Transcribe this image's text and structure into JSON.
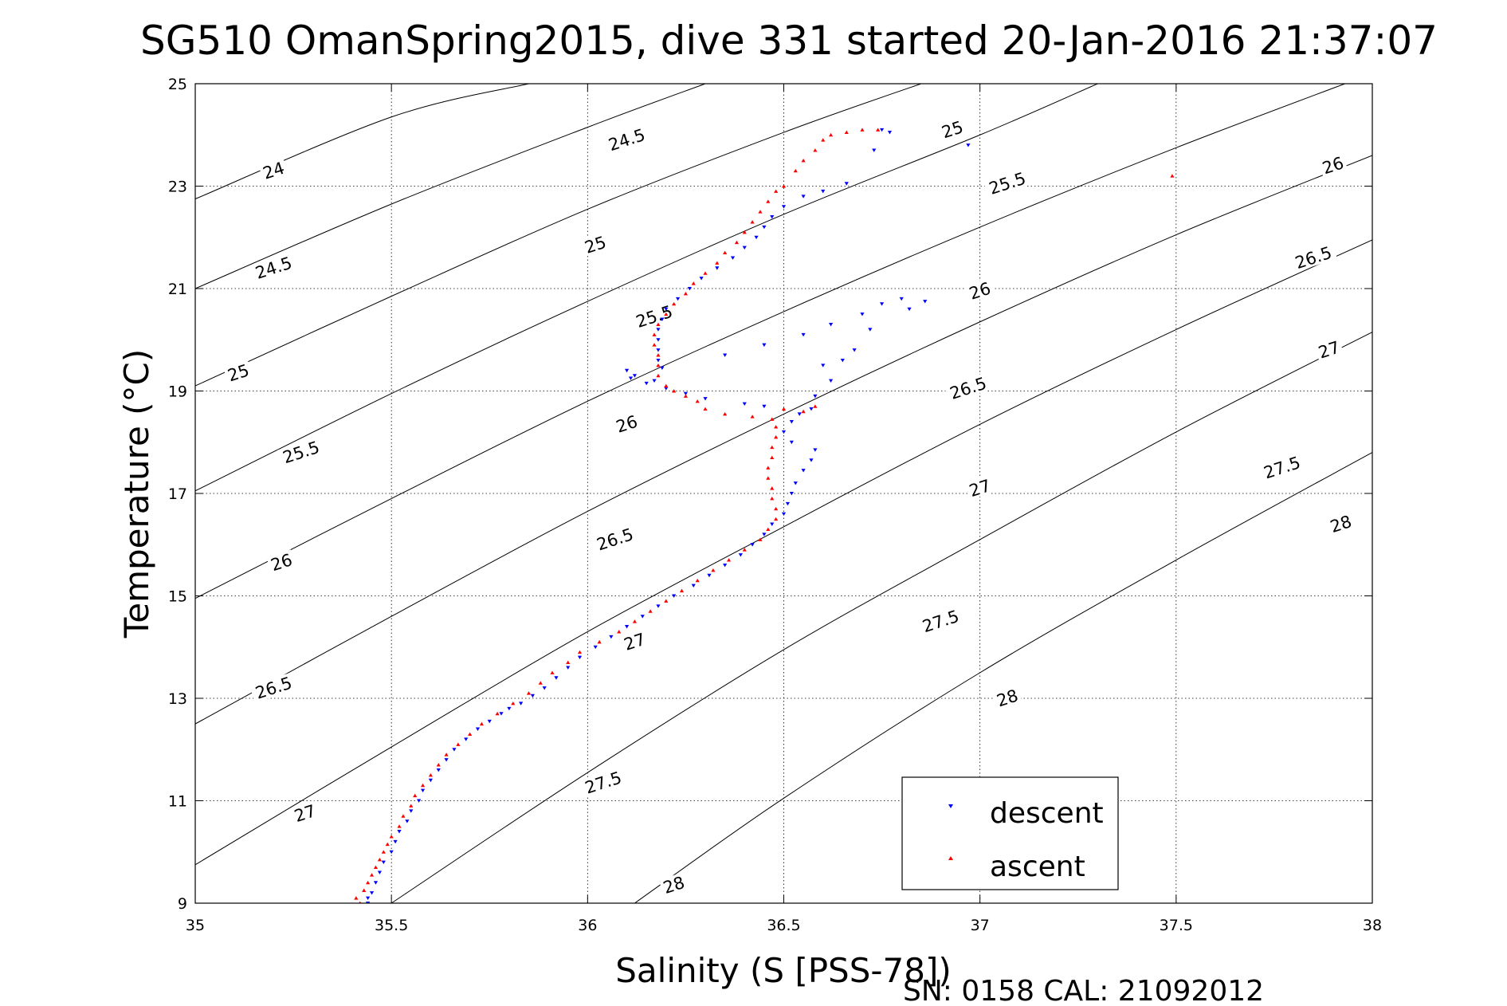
{
  "chart_data": {
    "type": "scatter",
    "title": "SG510 OmanSpring2015, dive 331 started 20-Jan-2016 21:37:07",
    "xlabel": "Salinity (S [PSS-78])",
    "ylabel": "Temperature (°C)",
    "xlim": [
      35,
      38
    ],
    "ylim": [
      9,
      25
    ],
    "x_ticks": [
      35,
      35.5,
      36,
      36.5,
      37,
      37.5,
      38
    ],
    "x_tick_labels": [
      "35",
      "35.5",
      "36",
      "36.5",
      "37",
      "37.5",
      "38"
    ],
    "y_ticks": [
      9,
      11,
      13,
      15,
      17,
      19,
      21,
      23,
      25
    ],
    "y_tick_labels": [
      "9",
      "11",
      "13",
      "15",
      "17",
      "19",
      "21",
      "23",
      "25"
    ],
    "grid": true,
    "legend_placement": "bottom-right",
    "footnote": "SN: 0158  CAL: 21092012",
    "colors": {
      "descent": "#0000ff",
      "ascent": "#ff0000",
      "contour": "#000000"
    },
    "contours": [
      {
        "level": "24",
        "points": [
          [
            35.0,
            22.75
          ],
          [
            35.5,
            24.35
          ],
          [
            35.85,
            25.0
          ]
        ]
      },
      {
        "level": "24.5",
        "points": [
          [
            35.0,
            21.0
          ],
          [
            35.5,
            22.65
          ],
          [
            36.0,
            24.15
          ],
          [
            36.3,
            25.0
          ]
        ]
      },
      {
        "level": "25",
        "points": [
          [
            35.0,
            19.1
          ],
          [
            35.5,
            20.85
          ],
          [
            36.0,
            22.55
          ],
          [
            36.5,
            24.05
          ],
          [
            36.85,
            25.0
          ]
        ]
      },
      {
        "level": "25.5",
        "points": [
          [
            35.0,
            17.05
          ],
          [
            35.5,
            18.95
          ],
          [
            36.0,
            20.75
          ],
          [
            36.5,
            22.45
          ],
          [
            37.0,
            24.0
          ],
          [
            37.3,
            25.0
          ]
        ]
      },
      {
        "level": "26",
        "points": [
          [
            35.0,
            14.95
          ],
          [
            35.5,
            16.9
          ],
          [
            36.0,
            18.8
          ],
          [
            36.5,
            20.55
          ],
          [
            37.0,
            22.2
          ],
          [
            37.5,
            23.75
          ],
          [
            38.0,
            25.2
          ]
        ]
      },
      {
        "level": "26.5",
        "points": [
          [
            35.0,
            12.5
          ],
          [
            35.5,
            14.6
          ],
          [
            36.0,
            16.65
          ],
          [
            36.5,
            18.55
          ],
          [
            37.0,
            20.35
          ],
          [
            37.5,
            22.05
          ],
          [
            38.0,
            23.6
          ]
        ]
      },
      {
        "level": "27",
        "points": [
          [
            35.0,
            9.75
          ],
          [
            35.5,
            12.05
          ],
          [
            36.0,
            14.3
          ],
          [
            36.5,
            16.35
          ],
          [
            37.0,
            18.35
          ],
          [
            37.5,
            20.2
          ],
          [
            38.0,
            21.95
          ]
        ]
      },
      {
        "level": "27.5",
        "points": [
          [
            35.5,
            9.0
          ],
          [
            36.0,
            11.55
          ],
          [
            36.5,
            13.95
          ],
          [
            37.0,
            16.1
          ],
          [
            37.5,
            18.2
          ],
          [
            38.0,
            20.15
          ]
        ]
      },
      {
        "level": "28",
        "points": [
          [
            36.12,
            9.0
          ],
          [
            36.5,
            11.05
          ],
          [
            37.0,
            13.5
          ],
          [
            37.5,
            15.7
          ],
          [
            38.0,
            17.8
          ]
        ]
      }
    ],
    "contour_labels": [
      {
        "text": "24",
        "x": 35.2,
        "y": 23.3
      },
      {
        "text": "24.5",
        "x": 36.1,
        "y": 23.9
      },
      {
        "text": "24.5",
        "x": 35.2,
        "y": 21.4
      },
      {
        "text": "25",
        "x": 36.02,
        "y": 21.85
      },
      {
        "text": "25",
        "x": 36.93,
        "y": 24.1
      },
      {
        "text": "25",
        "x": 35.11,
        "y": 19.35
      },
      {
        "text": "25.5",
        "x": 36.17,
        "y": 20.45
      },
      {
        "text": "25.5",
        "x": 37.07,
        "y": 23.05
      },
      {
        "text": "25.5",
        "x": 35.27,
        "y": 17.8
      },
      {
        "text": "26",
        "x": 36.1,
        "y": 18.35
      },
      {
        "text": "26",
        "x": 37.0,
        "y": 20.95
      },
      {
        "text": "26",
        "x": 37.9,
        "y": 23.4
      },
      {
        "text": "26",
        "x": 35.22,
        "y": 15.65
      },
      {
        "text": "26.5",
        "x": 36.07,
        "y": 16.1
      },
      {
        "text": "26.5",
        "x": 36.97,
        "y": 19.05
      },
      {
        "text": "26.5",
        "x": 37.85,
        "y": 21.6
      },
      {
        "text": "26.5",
        "x": 35.2,
        "y": 13.2
      },
      {
        "text": "27",
        "x": 36.12,
        "y": 14.1
      },
      {
        "text": "27",
        "x": 37.0,
        "y": 17.1
      },
      {
        "text": "27",
        "x": 37.89,
        "y": 19.8
      },
      {
        "text": "27",
        "x": 35.28,
        "y": 10.75
      },
      {
        "text": "27.5",
        "x": 36.04,
        "y": 11.35
      },
      {
        "text": "27.5",
        "x": 36.9,
        "y": 14.5
      },
      {
        "text": "27.5",
        "x": 37.77,
        "y": 17.5
      },
      {
        "text": "28",
        "x": 36.22,
        "y": 9.35
      },
      {
        "text": "28",
        "x": 37.07,
        "y": 13.0
      },
      {
        "text": "28",
        "x": 37.92,
        "y": 16.4
      }
    ],
    "series": [
      {
        "name": "descent",
        "marker": "triangle-down",
        "points": [
          [
            35.44,
            9.0
          ],
          [
            35.44,
            9.1
          ],
          [
            35.45,
            9.2
          ],
          [
            35.46,
            9.4
          ],
          [
            35.47,
            9.6
          ],
          [
            35.48,
            9.8
          ],
          [
            35.5,
            10.0
          ],
          [
            35.51,
            10.2
          ],
          [
            35.52,
            10.4
          ],
          [
            35.54,
            10.6
          ],
          [
            35.55,
            10.8
          ],
          [
            35.57,
            11.0
          ],
          [
            35.58,
            11.2
          ],
          [
            35.6,
            11.4
          ],
          [
            35.62,
            11.6
          ],
          [
            35.64,
            11.8
          ],
          [
            35.66,
            12.0
          ],
          [
            35.69,
            12.2
          ],
          [
            35.72,
            12.4
          ],
          [
            35.75,
            12.55
          ],
          [
            35.78,
            12.7
          ],
          [
            35.8,
            12.8
          ],
          [
            35.83,
            12.9
          ],
          [
            35.86,
            13.05
          ],
          [
            35.89,
            13.2
          ],
          [
            35.92,
            13.4
          ],
          [
            35.95,
            13.6
          ],
          [
            35.98,
            13.8
          ],
          [
            36.02,
            14.0
          ],
          [
            36.06,
            14.2
          ],
          [
            36.1,
            14.4
          ],
          [
            36.14,
            14.6
          ],
          [
            36.18,
            14.8
          ],
          [
            36.22,
            15.0
          ],
          [
            36.27,
            15.2
          ],
          [
            36.31,
            15.4
          ],
          [
            36.35,
            15.6
          ],
          [
            36.39,
            15.8
          ],
          [
            36.42,
            16.0
          ],
          [
            36.45,
            16.2
          ],
          [
            36.47,
            16.4
          ],
          [
            36.5,
            16.6
          ],
          [
            36.51,
            16.8
          ],
          [
            36.52,
            17.0
          ],
          [
            36.53,
            17.2
          ],
          [
            36.55,
            17.45
          ],
          [
            36.57,
            17.65
          ],
          [
            36.58,
            17.85
          ],
          [
            36.52,
            18.0
          ],
          [
            36.5,
            18.2
          ],
          [
            36.52,
            18.4
          ],
          [
            36.54,
            18.55
          ],
          [
            36.57,
            18.65
          ],
          [
            36.45,
            18.7
          ],
          [
            36.4,
            18.75
          ],
          [
            36.3,
            18.85
          ],
          [
            36.25,
            18.95
          ],
          [
            36.2,
            19.05
          ],
          [
            36.15,
            19.15
          ],
          [
            36.12,
            19.3
          ],
          [
            36.1,
            19.4
          ],
          [
            36.11,
            19.25
          ],
          [
            36.17,
            19.2
          ],
          [
            36.19,
            19.45
          ],
          [
            36.18,
            19.6
          ],
          [
            36.18,
            19.8
          ],
          [
            36.18,
            20.0
          ],
          [
            36.18,
            20.2
          ],
          [
            36.19,
            20.4
          ],
          [
            36.2,
            20.6
          ],
          [
            36.23,
            20.8
          ],
          [
            36.26,
            21.0
          ],
          [
            36.29,
            21.2
          ],
          [
            36.33,
            21.4
          ],
          [
            36.37,
            21.6
          ],
          [
            36.4,
            21.8
          ],
          [
            36.43,
            22.0
          ],
          [
            36.45,
            22.2
          ],
          [
            36.47,
            22.4
          ],
          [
            36.5,
            22.6
          ],
          [
            36.55,
            22.8
          ],
          [
            36.6,
            22.9
          ],
          [
            36.66,
            23.05
          ],
          [
            36.73,
            23.7
          ],
          [
            36.77,
            24.05
          ],
          [
            36.75,
            24.1
          ],
          [
            36.97,
            23.8
          ],
          [
            36.35,
            19.7
          ],
          [
            36.45,
            19.9
          ],
          [
            36.55,
            20.1
          ],
          [
            36.62,
            20.3
          ],
          [
            36.7,
            20.5
          ],
          [
            36.75,
            20.7
          ],
          [
            36.8,
            20.8
          ],
          [
            36.86,
            20.75
          ],
          [
            36.82,
            20.6
          ],
          [
            36.72,
            20.2
          ],
          [
            36.68,
            19.8
          ],
          [
            36.65,
            19.6
          ],
          [
            36.6,
            19.5
          ],
          [
            36.62,
            19.2
          ],
          [
            36.58,
            18.9
          ]
        ]
      },
      {
        "name": "ascent",
        "marker": "triangle-up",
        "points": [
          [
            35.41,
            9.1
          ],
          [
            35.42,
            9.0
          ],
          [
            35.43,
            9.25
          ],
          [
            35.44,
            9.4
          ],
          [
            35.45,
            9.55
          ],
          [
            35.46,
            9.7
          ],
          [
            35.47,
            9.85
          ],
          [
            35.48,
            10.0
          ],
          [
            35.49,
            10.15
          ],
          [
            35.5,
            10.3
          ],
          [
            35.52,
            10.5
          ],
          [
            35.53,
            10.7
          ],
          [
            35.55,
            10.9
          ],
          [
            35.56,
            11.1
          ],
          [
            35.58,
            11.3
          ],
          [
            35.6,
            11.5
          ],
          [
            35.62,
            11.7
          ],
          [
            35.64,
            11.9
          ],
          [
            35.67,
            12.1
          ],
          [
            35.7,
            12.3
          ],
          [
            35.73,
            12.5
          ],
          [
            35.77,
            12.7
          ],
          [
            35.81,
            12.9
          ],
          [
            35.85,
            13.1
          ],
          [
            35.88,
            13.3
          ],
          [
            35.91,
            13.5
          ],
          [
            35.95,
            13.7
          ],
          [
            35.98,
            13.9
          ],
          [
            36.03,
            14.1
          ],
          [
            36.08,
            14.3
          ],
          [
            36.12,
            14.5
          ],
          [
            36.16,
            14.7
          ],
          [
            36.2,
            14.9
          ],
          [
            36.24,
            15.1
          ],
          [
            36.28,
            15.3
          ],
          [
            36.32,
            15.5
          ],
          [
            36.36,
            15.7
          ],
          [
            36.4,
            15.9
          ],
          [
            36.44,
            16.1
          ],
          [
            36.46,
            16.3
          ],
          [
            36.48,
            16.5
          ],
          [
            36.48,
            16.7
          ],
          [
            36.47,
            16.9
          ],
          [
            36.47,
            17.1
          ],
          [
            36.46,
            17.3
          ],
          [
            36.46,
            17.5
          ],
          [
            36.47,
            17.7
          ],
          [
            36.47,
            17.9
          ],
          [
            36.48,
            18.1
          ],
          [
            36.48,
            18.3
          ],
          [
            36.47,
            18.45
          ],
          [
            36.42,
            18.5
          ],
          [
            36.35,
            18.55
          ],
          [
            36.3,
            18.65
          ],
          [
            36.28,
            18.8
          ],
          [
            36.25,
            18.9
          ],
          [
            36.22,
            19.0
          ],
          [
            36.2,
            19.1
          ],
          [
            36.18,
            19.3
          ],
          [
            36.18,
            19.5
          ],
          [
            36.18,
            19.7
          ],
          [
            36.17,
            19.9
          ],
          [
            36.17,
            20.1
          ],
          [
            36.18,
            20.3
          ],
          [
            36.2,
            20.5
          ],
          [
            36.22,
            20.7
          ],
          [
            36.25,
            20.9
          ],
          [
            36.27,
            21.1
          ],
          [
            36.3,
            21.3
          ],
          [
            36.33,
            21.5
          ],
          [
            36.35,
            21.7
          ],
          [
            36.38,
            21.9
          ],
          [
            36.4,
            22.1
          ],
          [
            36.42,
            22.3
          ],
          [
            36.44,
            22.5
          ],
          [
            36.46,
            22.7
          ],
          [
            36.48,
            22.9
          ],
          [
            36.5,
            23.0
          ],
          [
            36.53,
            23.3
          ],
          [
            36.55,
            23.5
          ],
          [
            36.58,
            23.7
          ],
          [
            36.6,
            23.9
          ],
          [
            36.62,
            24.0
          ],
          [
            36.66,
            24.05
          ],
          [
            36.7,
            24.1
          ],
          [
            36.74,
            24.1
          ],
          [
            37.49,
            23.2
          ],
          [
            36.5,
            18.65
          ],
          [
            36.55,
            18.6
          ],
          [
            36.58,
            18.7
          ]
        ]
      }
    ]
  }
}
